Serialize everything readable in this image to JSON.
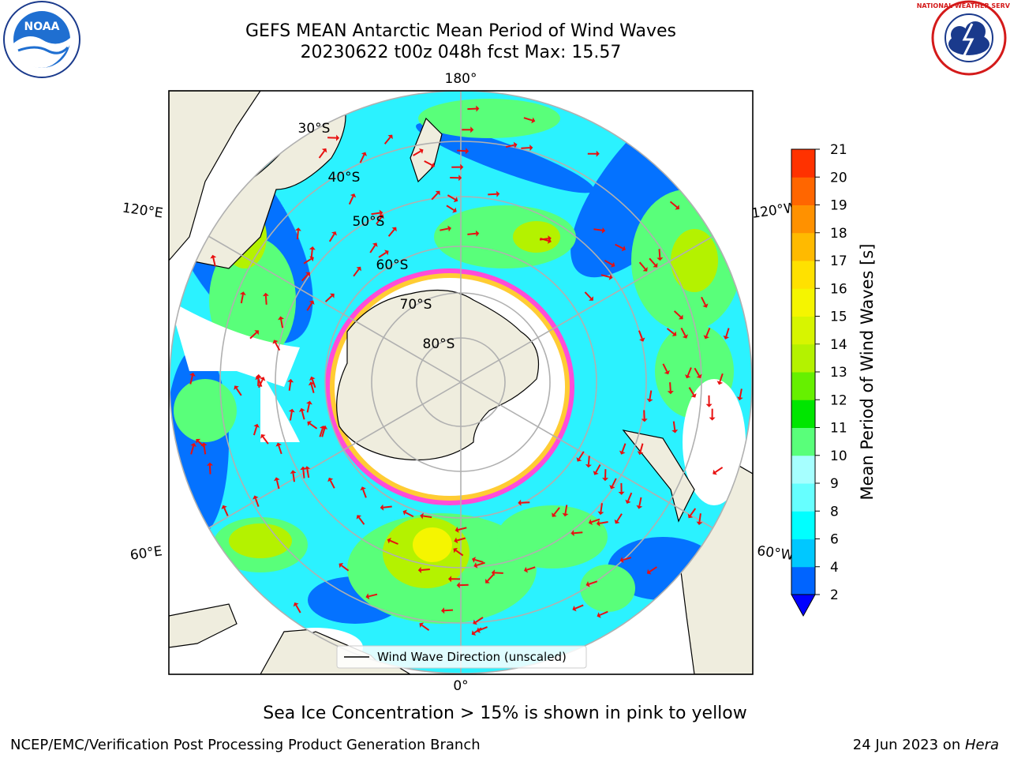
{
  "title": {
    "line1": "GEFS MEAN Antarctic Mean Period of Wind Waves",
    "line2": "20230622 t00z 048h fcst   Max: 15.57"
  },
  "logos": {
    "left": {
      "name": "noaa-logo",
      "text": "NOAA"
    },
    "right": {
      "name": "nws-logo",
      "text": "NATIONAL WEATHER SERVICE"
    }
  },
  "map": {
    "projection": "south-polar-stereographic",
    "longitude_labels": [
      "180°",
      "120°E",
      "120°W",
      "60°E",
      "60°W",
      "0°"
    ],
    "latitude_labels": [
      "30°S",
      "40°S",
      "50°S",
      "60°S",
      "70°S",
      "80°S"
    ],
    "legend_label": "Wind Wave Direction (unscaled)",
    "ocean_color": "#2bf2ff",
    "land_color": "#efedde",
    "arrow_color": "#e81010",
    "sea_ice_colors": [
      "#ff4cd8",
      "#ffcc33"
    ]
  },
  "colorbar": {
    "label": "Mean Period of Wind Waves [s]",
    "ticks": [
      "2",
      "4",
      "6",
      "8",
      "9",
      "10",
      "11",
      "12",
      "13",
      "14",
      "15",
      "16",
      "17",
      "18",
      "19",
      "20",
      "21"
    ],
    "colors": [
      "#0064ff",
      "#00c8ff",
      "#00ffff",
      "#66ffff",
      "#a6ffff",
      "#59ff7a",
      "#00e600",
      "#66f000",
      "#b4f200",
      "#d7f500",
      "#f5f500",
      "#ffe100",
      "#ffba00",
      "#ff9100",
      "#ff6600",
      "#ff3200"
    ],
    "under_color": "#0000ff"
  },
  "note": "Sea Ice Concentration > 15% is shown in pink to yellow",
  "footer": {
    "left": "NCEP/EMC/Verification Post Processing Product Generation Branch",
    "date": "24 Jun 2023 on ",
    "machine": "Hera"
  }
}
